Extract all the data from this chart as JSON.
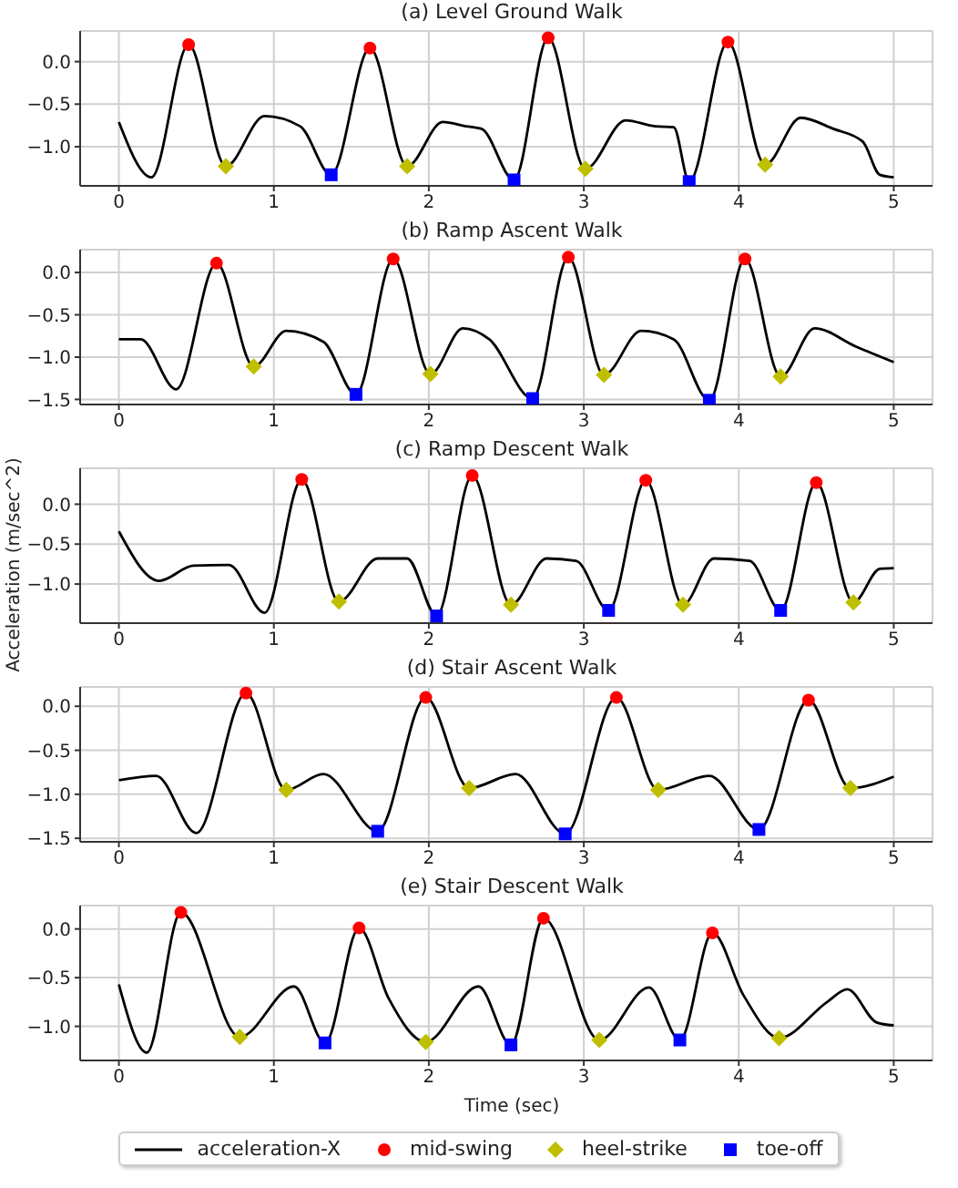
{
  "chart_data": [
    {
      "type": "line",
      "title": "(a) Level Ground Walk",
      "xlim": [
        -0.25,
        5.25
      ],
      "ylim": [
        -1.46,
        0.36
      ],
      "xticks": [
        0,
        1,
        2,
        3,
        4,
        5
      ],
      "yticks": [
        {
          "value": -1.0,
          "label": "−1.0"
        },
        {
          "value": -0.5,
          "label": "−0.5"
        },
        {
          "value": 0,
          "label": "0.0"
        }
      ],
      "grid": true,
      "series": [
        {
          "color": "#000000",
          "x": [
            0,
            0.21,
            0.45,
            0.69,
            0.94,
            1.17,
            1.37,
            1.62,
            1.86,
            2.09,
            2.24,
            2.34,
            2.55,
            2.77,
            3.01,
            3.27,
            3.46,
            3.58,
            3.68,
            3.93,
            4.17,
            4.4,
            4.61,
            4.8,
            4.91,
            5.0
          ],
          "values": [
            -0.71,
            -1.36,
            0.2,
            -1.23,
            -0.64,
            -0.76,
            -1.33,
            0.16,
            -1.23,
            -0.71,
            -0.76,
            -0.79,
            -1.39,
            0.28,
            -1.26,
            -0.69,
            -0.76,
            -0.77,
            -1.41,
            0.23,
            -1.21,
            -0.66,
            -0.79,
            -0.94,
            -1.33,
            -1.36
          ]
        },
        {
          "type": "scatter",
          "marker": "circle",
          "color": "#ff0000",
          "x": [
            0.45,
            1.62,
            2.77,
            3.93
          ],
          "values": [
            0.2,
            0.16,
            0.28,
            0.23
          ]
        },
        {
          "type": "scatter",
          "marker": "diamond",
          "color": "#bfbf00",
          "x": [
            0.69,
            1.86,
            3.01,
            4.17
          ],
          "values": [
            -1.23,
            -1.23,
            -1.26,
            -1.21
          ]
        },
        {
          "type": "scatter",
          "marker": "square",
          "color": "#0000ff",
          "x": [
            1.37,
            2.55,
            3.68
          ],
          "values": [
            -1.33,
            -1.39,
            -1.41
          ]
        }
      ]
    },
    {
      "type": "line",
      "title": "(b) Ramp Ascent Walk",
      "xlim": [
        -0.25,
        5.25
      ],
      "ylim": [
        -1.56,
        0.27
      ],
      "xticks": [
        0,
        1,
        2,
        3,
        4,
        5
      ],
      "yticks": [
        {
          "value": -1.5,
          "label": "−1.5"
        },
        {
          "value": -1.0,
          "label": "−1.0"
        },
        {
          "value": -0.5,
          "label": "−0.5"
        },
        {
          "value": 0,
          "label": "0.0"
        }
      ],
      "grid": true,
      "series": [
        {
          "color": "#000000",
          "x": [
            0,
            0.14,
            0.37,
            0.63,
            0.87,
            1.08,
            1.32,
            1.53,
            1.77,
            2.01,
            2.22,
            2.39,
            2.67,
            2.9,
            3.13,
            3.37,
            3.58,
            3.81,
            4.04,
            4.27,
            4.49,
            4.76,
            5.0
          ],
          "values": [
            -0.79,
            -0.79,
            -1.38,
            0.11,
            -1.11,
            -0.69,
            -0.82,
            -1.44,
            0.16,
            -1.2,
            -0.66,
            -0.79,
            -1.49,
            0.18,
            -1.21,
            -0.69,
            -0.79,
            -1.51,
            0.16,
            -1.23,
            -0.66,
            -0.88,
            -1.06
          ]
        },
        {
          "type": "scatter",
          "marker": "circle",
          "color": "#ff0000",
          "x": [
            0.63,
            1.77,
            2.9,
            4.04
          ],
          "values": [
            0.11,
            0.16,
            0.18,
            0.16
          ]
        },
        {
          "type": "scatter",
          "marker": "diamond",
          "color": "#bfbf00",
          "x": [
            0.87,
            2.01,
            3.13,
            4.27
          ],
          "values": [
            -1.11,
            -1.2,
            -1.21,
            -1.23
          ]
        },
        {
          "type": "scatter",
          "marker": "square",
          "color": "#0000ff",
          "x": [
            1.53,
            2.67,
            3.81
          ],
          "values": [
            -1.44,
            -1.49,
            -1.51
          ]
        }
      ]
    },
    {
      "type": "line",
      "title": "(c) Ramp Descent Walk",
      "ylabel": "Acceleration (m/sec^2)",
      "xlim": [
        -0.25,
        5.25
      ],
      "ylim": [
        -1.49,
        0.45
      ],
      "xticks": [
        0,
        1,
        2,
        3,
        4,
        5
      ],
      "yticks": [
        {
          "value": -1.0,
          "label": "−1.0"
        },
        {
          "value": -0.5,
          "label": "−0.5"
        },
        {
          "value": 0,
          "label": "0.0"
        }
      ],
      "grid": true,
      "series": [
        {
          "color": "#000000",
          "x": [
            0,
            0.26,
            0.48,
            0.71,
            0.94,
            1.18,
            1.42,
            1.67,
            1.86,
            2.05,
            2.28,
            2.53,
            2.76,
            2.95,
            3.16,
            3.4,
            3.64,
            3.84,
            4.07,
            4.27,
            4.5,
            4.74,
            4.91,
            5.0
          ],
          "values": [
            -0.34,
            -0.96,
            -0.77,
            -0.76,
            -1.36,
            0.31,
            -1.22,
            -0.68,
            -0.68,
            -1.4,
            0.36,
            -1.26,
            -0.68,
            -0.71,
            -1.33,
            0.3,
            -1.26,
            -0.68,
            -0.71,
            -1.33,
            0.27,
            -1.23,
            -0.81,
            -0.8
          ]
        },
        {
          "type": "scatter",
          "marker": "circle",
          "color": "#ff0000",
          "x": [
            1.18,
            2.28,
            3.4,
            4.5
          ],
          "values": [
            0.31,
            0.36,
            0.3,
            0.27
          ]
        },
        {
          "type": "scatter",
          "marker": "diamond",
          "color": "#bfbf00",
          "x": [
            1.42,
            2.53,
            3.64,
            4.74
          ],
          "values": [
            -1.22,
            -1.26,
            -1.26,
            -1.23
          ]
        },
        {
          "type": "scatter",
          "marker": "square",
          "color": "#0000ff",
          "x": [
            2.05,
            3.16,
            4.27
          ],
          "values": [
            -1.4,
            -1.33,
            -1.33
          ]
        }
      ]
    },
    {
      "type": "line",
      "title": "(d) Stair Ascent Walk",
      "xlim": [
        -0.25,
        5.25
      ],
      "ylim": [
        -1.54,
        0.22
      ],
      "xticks": [
        0,
        1,
        2,
        3,
        4,
        5
      ],
      "yticks": [
        {
          "value": -1.5,
          "label": "−1.5"
        },
        {
          "value": -1.0,
          "label": "−1.0"
        },
        {
          "value": -0.5,
          "label": "−0.5"
        },
        {
          "value": 0,
          "label": "0.0"
        }
      ],
      "grid": true,
      "series": [
        {
          "color": "#000000",
          "x": [
            0,
            0.24,
            0.5,
            0.82,
            1.08,
            1.32,
            1.67,
            1.98,
            2.26,
            2.56,
            2.88,
            3.21,
            3.48,
            3.81,
            4.13,
            4.45,
            4.72,
            5.0
          ],
          "values": [
            -0.84,
            -0.79,
            -1.44,
            0.15,
            -0.95,
            -0.77,
            -1.42,
            0.1,
            -0.93,
            -0.77,
            -1.45,
            0.1,
            -0.95,
            -0.79,
            -1.4,
            0.07,
            -0.93,
            -0.8
          ]
        },
        {
          "type": "scatter",
          "marker": "circle",
          "color": "#ff0000",
          "x": [
            0.82,
            1.98,
            3.21,
            4.45
          ],
          "values": [
            0.15,
            0.1,
            0.1,
            0.07
          ]
        },
        {
          "type": "scatter",
          "marker": "diamond",
          "color": "#bfbf00",
          "x": [
            1.08,
            2.26,
            3.48,
            4.72
          ],
          "values": [
            -0.95,
            -0.93,
            -0.95,
            -0.93
          ]
        },
        {
          "type": "scatter",
          "marker": "square",
          "color": "#0000ff",
          "x": [
            1.67,
            2.88,
            4.13
          ],
          "values": [
            -1.42,
            -1.45,
            -1.4
          ]
        }
      ]
    },
    {
      "type": "line",
      "title": "(e) Stair Descent Walk",
      "xlabel": "Time (sec)",
      "legend": "bottom",
      "xlim": [
        -0.25,
        5.25
      ],
      "ylim": [
        -1.35,
        0.24
      ],
      "xticks": [
        0,
        1,
        2,
        3,
        4,
        5
      ],
      "yticks": [
        {
          "value": -1.0,
          "label": "−1.0"
        },
        {
          "value": -0.5,
          "label": "−0.5"
        },
        {
          "value": 0,
          "label": "0.0"
        }
      ],
      "grid": true,
      "series": [
        {
          "name": "acceleration-X",
          "color": "#000000",
          "x": [
            0,
            0.18,
            0.4,
            0.78,
            1.13,
            1.33,
            1.55,
            1.74,
            1.98,
            2.32,
            2.53,
            2.74,
            3.1,
            3.42,
            3.62,
            3.83,
            4.03,
            4.26,
            4.57,
            4.7,
            4.89,
            5.0
          ],
          "values": [
            -0.57,
            -1.27,
            0.17,
            -1.11,
            -0.59,
            -1.17,
            0.01,
            -0.71,
            -1.16,
            -0.59,
            -1.19,
            0.11,
            -1.14,
            -0.6,
            -1.14,
            -0.04,
            -0.68,
            -1.12,
            -0.75,
            -0.62,
            -0.96,
            -0.99
          ]
        },
        {
          "type": "scatter",
          "name": "mid-swing",
          "marker": "circle",
          "color": "#ff0000",
          "x": [
            0.4,
            1.55,
            2.74,
            3.83
          ],
          "values": [
            0.17,
            0.01,
            0.11,
            -0.04
          ]
        },
        {
          "type": "scatter",
          "name": "heel-strike",
          "marker": "diamond",
          "color": "#bfbf00",
          "x": [
            0.78,
            1.98,
            3.1,
            4.26
          ],
          "values": [
            -1.11,
            -1.16,
            -1.14,
            -1.12
          ]
        },
        {
          "type": "scatter",
          "name": "toe-off",
          "marker": "square",
          "color": "#0000ff",
          "x": [
            1.33,
            2.53,
            3.62
          ],
          "values": [
            -1.17,
            -1.19,
            -1.14
          ]
        }
      ]
    }
  ]
}
